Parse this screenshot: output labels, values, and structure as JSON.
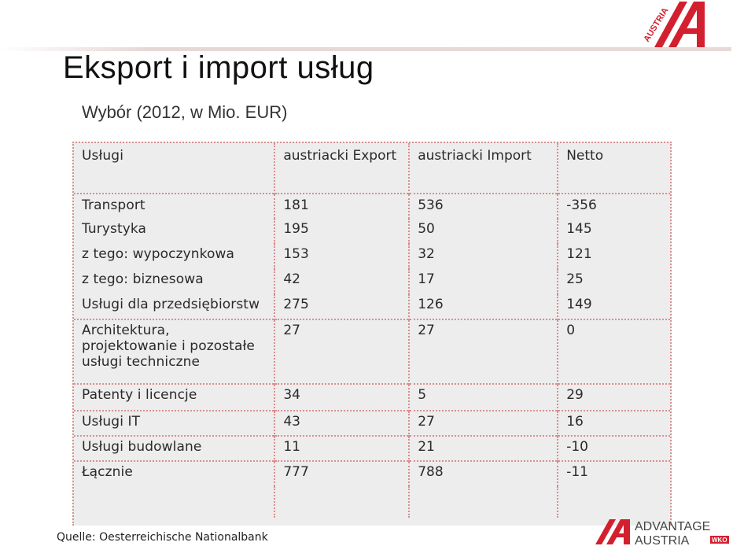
{
  "page": {
    "title": "Eksport i import  usług",
    "subtitle": "Wybór (2012, w Mio. EUR)",
    "source": "Quelle: Oesterreichische Nationalbank"
  },
  "branding": {
    "top_logo_text": "AUSTRIA",
    "bottom_logo_line1": "ADVANTAGE",
    "bottom_logo_line2": "AUSTRIA",
    "bottom_logo_badge": "WKO",
    "accent_color": "#d3202f"
  },
  "table": {
    "headers": [
      "Usługi",
      "austriacki Export",
      "austriacki Import",
      "Netto"
    ],
    "rows": [
      [
        "Transport",
        "181",
        "536",
        "-356"
      ],
      [
        "Turystyka",
        "195",
        "50",
        "145"
      ],
      [
        "z tego: wypoczynkowa",
        "153",
        "32",
        "121"
      ],
      [
        "z tego: biznesowa",
        "42",
        "17",
        "25"
      ],
      [
        "Usługi dla przedsiębiorstw",
        "275",
        "126",
        "149"
      ],
      [
        "Architektura, projektowanie i pozostałe usługi techniczne",
        "27",
        "27",
        "0"
      ],
      [
        "Patenty i licencje",
        "34",
        "5",
        "29"
      ],
      [
        "Usługi IT",
        "43",
        "27",
        "16"
      ],
      [
        "Usługi budowlane",
        "11",
        "21",
        "-10"
      ],
      [
        "Łącznie",
        "777",
        "788",
        "-11"
      ]
    ]
  }
}
